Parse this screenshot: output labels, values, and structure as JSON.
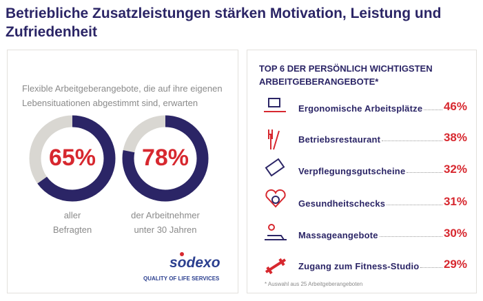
{
  "title": "Betriebliche Zusatzleistungen stärken Motivation, Leistung und Zufriedenheit",
  "chart_data": [
    {
      "type": "donut",
      "subtitle": "Flexible Arbeitgeberangebote, die auf ihre eigenen Lebensituationen abgestimmt sind, erwarten",
      "categories": [
        "aller\nBefragten",
        "der Arbeitnehmer\nunter 30 Jahren"
      ],
      "values": [
        65,
        78
      ],
      "value_labels": [
        "65%",
        "78%"
      ],
      "color": "#2b2566",
      "rest_color": "#d9d7d2",
      "label_color": "#d7282f"
    },
    {
      "type": "ranked-list",
      "title": "TOP 6 DER PERSÖNLICH WICHTIGSTEN ARBEITGEBERANGEBOTE*",
      "categories": [
        "Ergonomische Arbeitsplätze",
        "Betriebsrestaurant",
        "Verpflegungsgutscheine",
        "Gesundheitschecks",
        "Massageangebote",
        "Zugang zum Fitness-Studio"
      ],
      "values": [
        46,
        38,
        32,
        31,
        30,
        29
      ],
      "value_labels": [
        "46%",
        "38%",
        "32%",
        "31%",
        "30%",
        "29%"
      ],
      "color": "#d7282f",
      "note": "* Auswahl aus 25 Arbeitgeberangeboten"
    }
  ],
  "logo": {
    "name": "sodexo",
    "tagline": "QUALITY OF LIFE SERVICES"
  }
}
